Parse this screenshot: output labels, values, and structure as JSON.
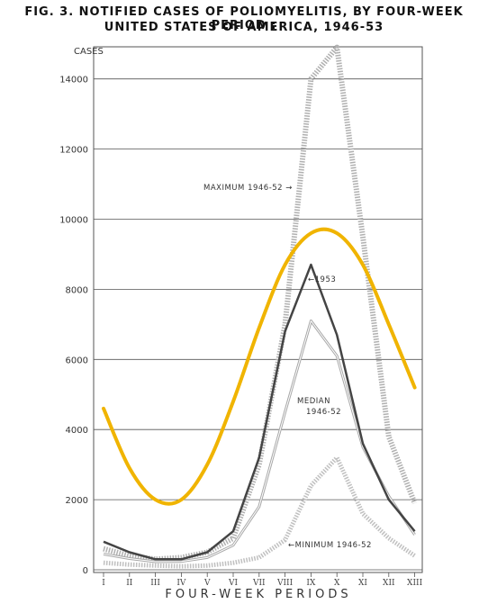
{
  "chart_data": {
    "type": "line",
    "title_line1": "FIG. 3.   NOTIFIED CASES OF POLIOMYELITIS, BY FOUR-WEEK PERIOD :",
    "title_line2": "UNITED STATES OF AMERICA, 1946-53",
    "ylabel": "CASES",
    "xlabel": "FOUR-WEEK PERIODS",
    "ylim": [
      0,
      15000
    ],
    "yticks": [
      0,
      2000,
      4000,
      6000,
      8000,
      10000,
      12000,
      14000
    ],
    "categories": [
      "I",
      "II",
      "III",
      "IV",
      "V",
      "VI",
      "VII",
      "VIII",
      "IX",
      "X",
      "XI",
      "XII",
      "XIII"
    ],
    "grid": true,
    "series": [
      {
        "name": "MAXIMUM 1946-52",
        "values": [
          600,
          400,
          300,
          350,
          500,
          900,
          3000,
          7000,
          14000,
          14900,
          9500,
          3800,
          1900
        ],
        "color": "#b0b0b0"
      },
      {
        "name": "1953",
        "values": [
          800,
          500,
          300,
          300,
          500,
          1100,
          3200,
          6800,
          8700,
          6700,
          3600,
          2000,
          1100
        ],
        "color": "#444444"
      },
      {
        "name": "MEDIAN 1946-52",
        "values": [
          450,
          320,
          230,
          240,
          350,
          700,
          1800,
          4500,
          7100,
          6100,
          3500,
          2100,
          1000
        ],
        "color": "#a8a8a8"
      },
      {
        "name": "MINIMUM 1946-52",
        "values": [
          200,
          150,
          120,
          100,
          120,
          200,
          350,
          850,
          2400,
          3200,
          1600,
          900,
          400
        ],
        "color": "#c0c0c0"
      }
    ],
    "overlay_curve": {
      "color": "#f0b400",
      "x": [
        0,
        1,
        2,
        3,
        4,
        5,
        6,
        7,
        8,
        9,
        10,
        11,
        12
      ],
      "y": [
        4600,
        2900,
        2000,
        2000,
        3000,
        4800,
        6900,
        8700,
        9600,
        9600,
        8700,
        7000,
        5200
      ]
    }
  }
}
